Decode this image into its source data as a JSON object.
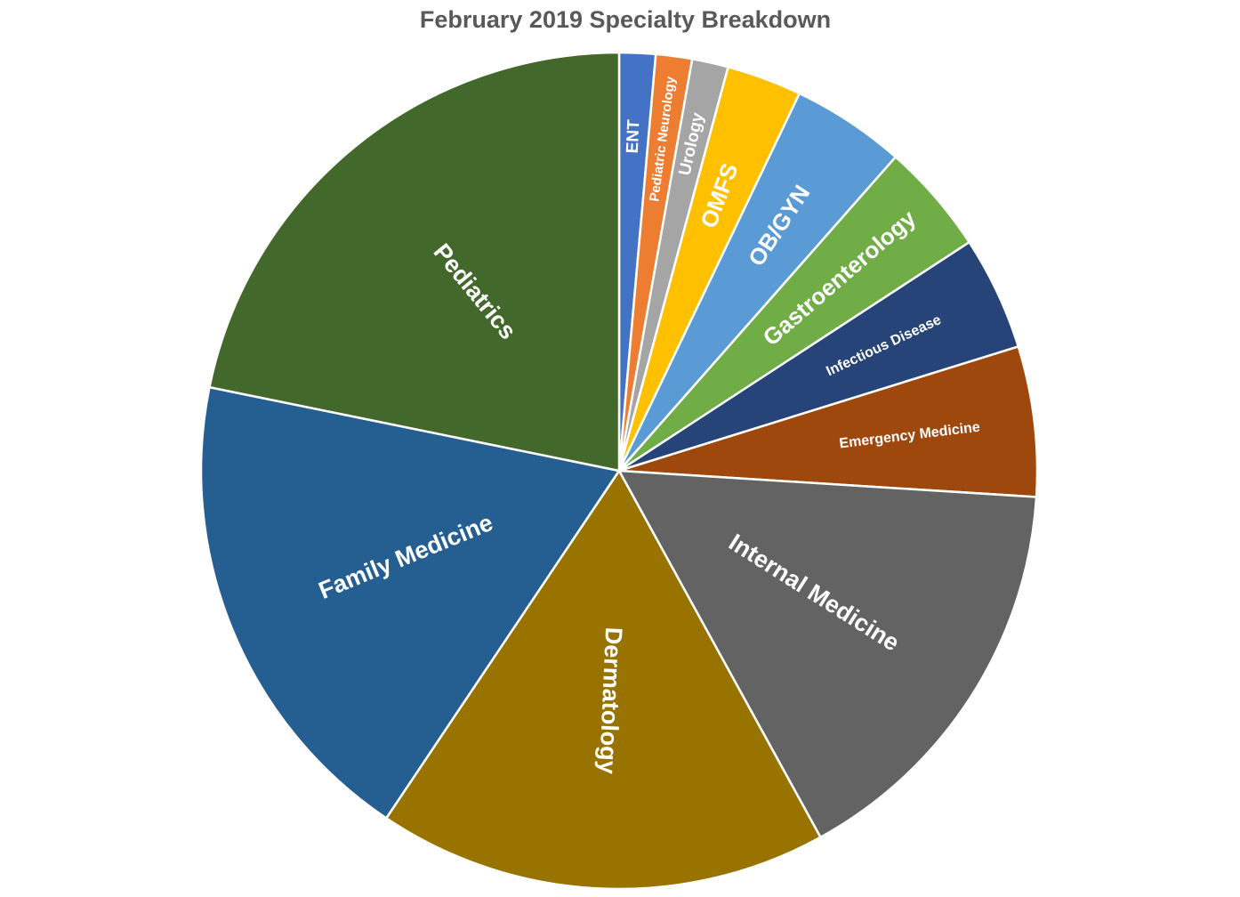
{
  "chart_data": {
    "type": "pie",
    "title": "February 2019 Specialty Breakdown",
    "categories": [
      "ENT",
      "Pediatric Neurology",
      "Urology",
      "OMFS",
      "OB/GYN",
      "Gastroenterology",
      "Infectious Disease",
      "Emergency Medicine",
      "Internal Medicine",
      "Dermatology",
      "Family Medicine",
      "Pediatrics"
    ],
    "values": [
      1.4,
      1.4,
      1.4,
      2.9,
      4.4,
      4.3,
      4.4,
      5.8,
      16,
      17.4,
      18.8,
      21.8
    ],
    "colors": [
      "#4472c4",
      "#ed7d31",
      "#a5a5a5",
      "#ffc000",
      "#5b9bd5",
      "#70ad47",
      "#264478",
      "#9e480e",
      "#636363",
      "#997300",
      "#255e91",
      "#43682b"
    ]
  }
}
